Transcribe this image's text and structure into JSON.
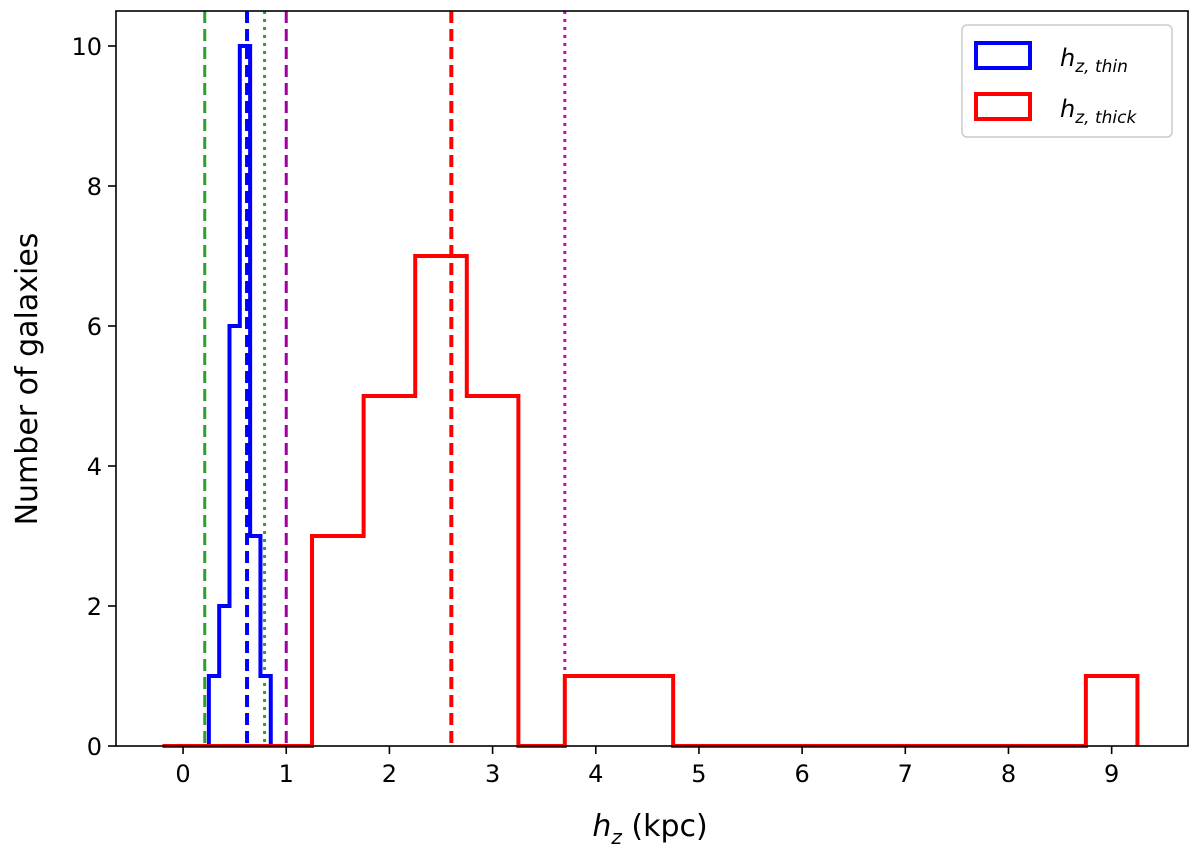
{
  "chart_data": {
    "type": "histogram",
    "xlabel_main": "h",
    "xlabel_sub": "z",
    "xlabel_unit": " (kpc)",
    "ylabel": "Number of galaxies",
    "xlim": [
      -0.65,
      9.74
    ],
    "ylim": [
      0,
      10.5
    ],
    "xticks": [
      0,
      1,
      2,
      3,
      4,
      5,
      6,
      7,
      8,
      9
    ],
    "yticks": [
      0,
      2,
      4,
      6,
      8,
      10
    ],
    "legend_position": "top-right",
    "series": [
      {
        "name_main": "h",
        "name_sub": "z, thin",
        "color": "#0000ff",
        "edges": [
          0.25,
          0.35,
          0.45,
          0.55,
          0.65,
          0.75,
          0.85
        ],
        "counts": [
          1,
          2,
          6,
          10,
          3,
          1
        ]
      },
      {
        "name_main": "h",
        "name_sub": "z, thick",
        "color": "#ff0000",
        "edges": [
          -0.2,
          1.25,
          1.75,
          2.25,
          2.75,
          3.25,
          3.7,
          4.75,
          8.75,
          9.25
        ],
        "counts": [
          0,
          3,
          5,
          7,
          5,
          0,
          1,
          0,
          1
        ]
      }
    ],
    "vlines": [
      {
        "x": 0.21,
        "color": "#2ca02c",
        "style": "dashed",
        "width": 3
      },
      {
        "x": 0.62,
        "color": "#0000ff",
        "style": "dashed",
        "width": 4
      },
      {
        "x": 0.79,
        "color": "#2ca02c",
        "style": "dotted",
        "width": 3
      },
      {
        "x": 1.0,
        "color": "#a000a0",
        "style": "dashed",
        "width": 3
      },
      {
        "x": 2.6,
        "color": "#ff0000",
        "style": "dashed",
        "width": 4
      },
      {
        "x": 3.7,
        "color": "#cc00cc",
        "style": "dotted",
        "width": 3
      }
    ]
  }
}
